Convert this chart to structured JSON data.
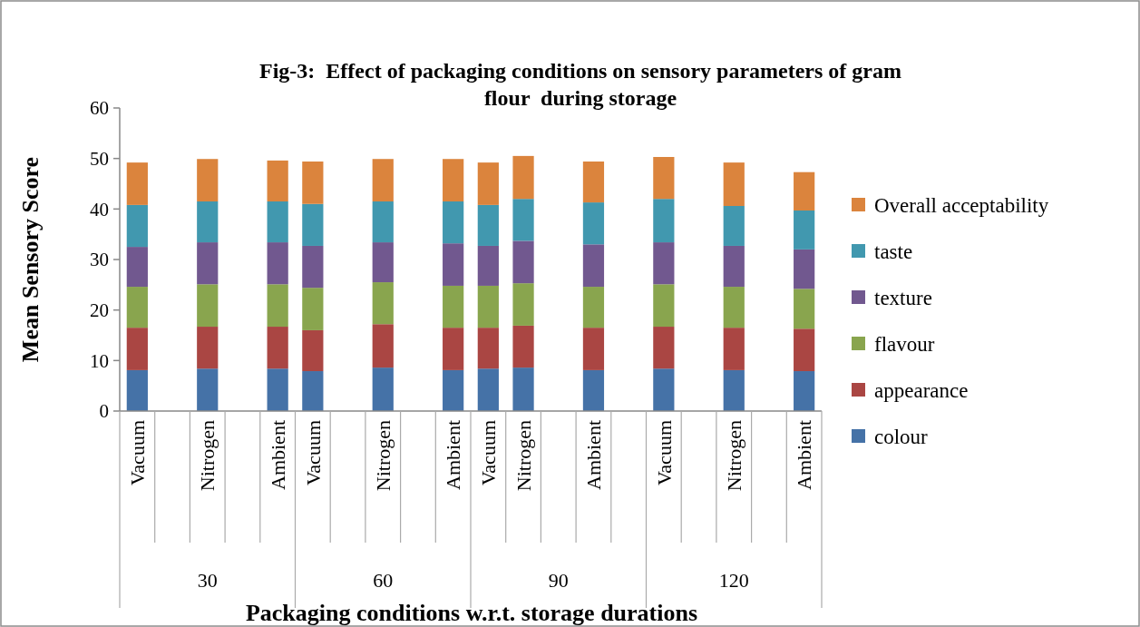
{
  "chart_data": {
    "type": "bar",
    "stacked": true,
    "title": "Fig-3:  Effect of packaging conditions on sensory parameters of gram\nflour  during storage",
    "xlabel": "Packaging conditions w.r.t.  storage durations",
    "ylabel": "Mean Sensory Score",
    "categories": [
      "Vacuum",
      null,
      "Nitrogen",
      null,
      "Ambient",
      "Vacuum",
      null,
      "Nitrogen",
      null,
      "Ambient",
      "Vacuum",
      "Nitrogen",
      null,
      "Ambient",
      null,
      "Vacuum",
      null,
      "Nitrogen",
      null,
      "Ambient"
    ],
    "annotations": [
      "30",
      "60",
      "90",
      "120"
    ],
    "ylim": [
      0,
      60
    ],
    "yticks": [
      0,
      10,
      20,
      30,
      40,
      50,
      60
    ],
    "grid": false,
    "legend": "right",
    "series": [
      {
        "name": "colour",
        "color": "#4572a7",
        "values": [
          8.1,
          null,
          8.4,
          null,
          8.4,
          7.9,
          null,
          8.6,
          null,
          8.1,
          8.4,
          8.6,
          null,
          8.1,
          null,
          8.4,
          null,
          8.1,
          null,
          7.9
        ]
      },
      {
        "name": "appearance",
        "color": "#aa4643",
        "values": [
          8.4,
          null,
          8.3,
          null,
          8.3,
          8.1,
          null,
          8.6,
          null,
          8.4,
          8.1,
          8.3,
          null,
          8.4,
          null,
          8.3,
          null,
          8.4,
          null,
          8.4
        ]
      },
      {
        "name": "flavour",
        "color": "#89a54e",
        "values": [
          8.1,
          null,
          8.4,
          null,
          8.4,
          8.4,
          null,
          8.3,
          null,
          8.3,
          8.3,
          8.4,
          null,
          8.1,
          null,
          8.4,
          null,
          8.1,
          null,
          7.9
        ]
      },
      {
        "name": "texture",
        "color": "#71588f",
        "values": [
          7.9,
          null,
          8.3,
          null,
          8.3,
          8.3,
          null,
          7.9,
          null,
          8.4,
          7.9,
          8.4,
          null,
          8.4,
          null,
          8.3,
          null,
          8.1,
          null,
          7.8
        ]
      },
      {
        "name": "taste",
        "color": "#4198af",
        "values": [
          8.3,
          null,
          8.1,
          null,
          8.1,
          8.3,
          null,
          8.1,
          null,
          8.3,
          8.1,
          8.3,
          null,
          8.3,
          null,
          8.6,
          null,
          7.9,
          null,
          7.7
        ]
      },
      {
        "name": "Overall acceptability",
        "color": "#db843d",
        "values": [
          8.4,
          null,
          8.4,
          null,
          8.1,
          8.4,
          null,
          8.4,
          null,
          8.4,
          8.4,
          8.5,
          null,
          8.1,
          null,
          8.3,
          null,
          8.6,
          null,
          7.6
        ]
      }
    ]
  }
}
